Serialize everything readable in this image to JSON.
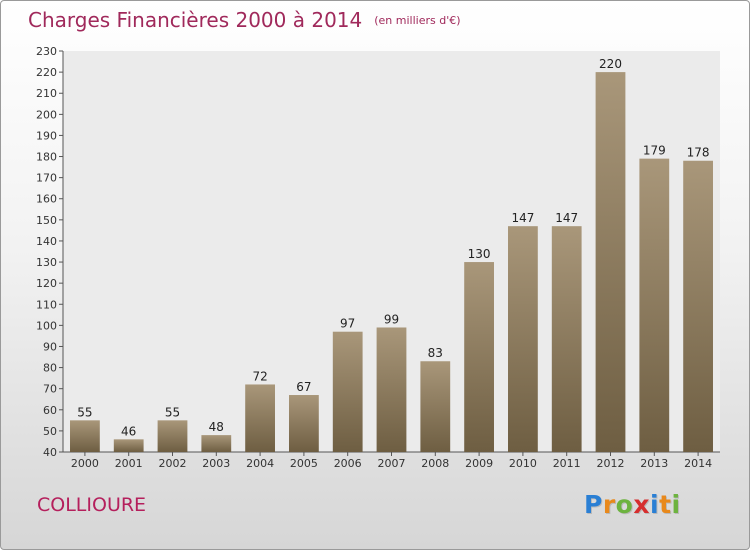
{
  "title": "Charges Financières 2000 à 2014",
  "subtitle": "(en milliers d'€)",
  "town": "COLLIOURE",
  "logo": {
    "letters": [
      "P",
      "r",
      "o",
      "x",
      "i",
      "t",
      "i"
    ],
    "colors": [
      "#2a7fd4",
      "#e8891c",
      "#6db33f",
      "#d62e2e",
      "#2a7fd4",
      "#e8891c",
      "#6db33f"
    ]
  },
  "chart_data": {
    "type": "bar",
    "categories": [
      "2000",
      "2001",
      "2002",
      "2003",
      "2004",
      "2005",
      "2006",
      "2007",
      "2008",
      "2009",
      "2010",
      "2011",
      "2012",
      "2013",
      "2014"
    ],
    "values": [
      55,
      46,
      55,
      48,
      72,
      67,
      97,
      99,
      83,
      130,
      147,
      147,
      220,
      179,
      178
    ],
    "ylim": [
      40,
      230
    ],
    "ytick_step": 10,
    "grid": false,
    "bar_color_top": "#a9977a",
    "bar_color_bottom": "#6e5e42"
  }
}
